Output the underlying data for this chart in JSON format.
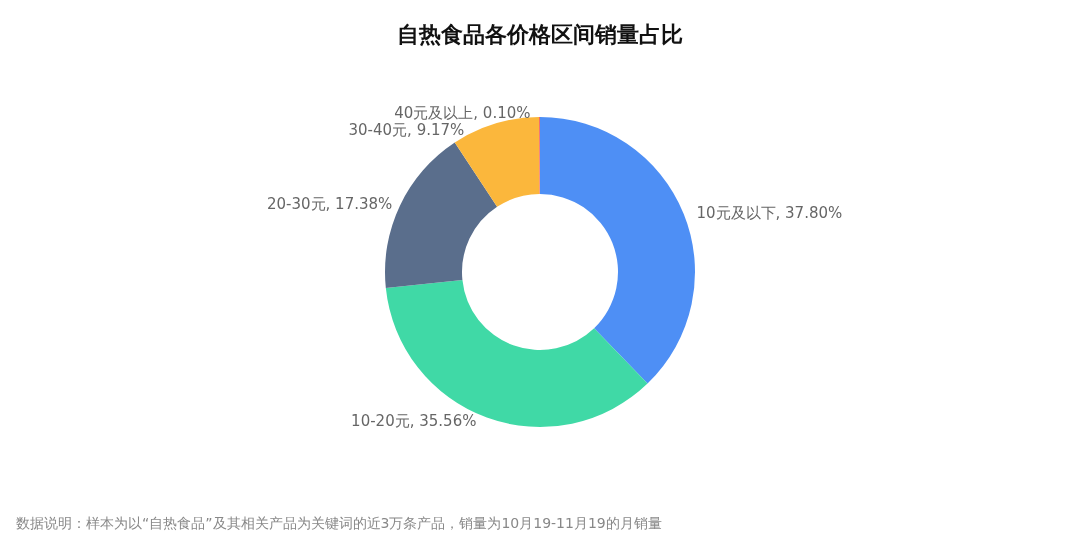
{
  "chart_data": {
    "type": "donut",
    "title": "自热食品各价格区间销量占比",
    "categories": [
      "10元及以下",
      "10-20元",
      "20-30元",
      "30-40元",
      "40元及以上"
    ],
    "values": [
      37.8,
      35.56,
      17.38,
      9.17,
      0.1
    ],
    "value_labels": [
      "37.80%",
      "35.56%",
      "17.38%",
      "9.17%",
      "0.10%"
    ],
    "colors": [
      "#4e8ff5",
      "#40d9a6",
      "#5a6e8c",
      "#fbb73c",
      "#ee6666"
    ],
    "legend": false,
    "annotations": [
      "数据说明：样本为以“自热食品”及其相关产品为关键词的近3万条产品，销量为10月19-11月19的月销量"
    ]
  }
}
